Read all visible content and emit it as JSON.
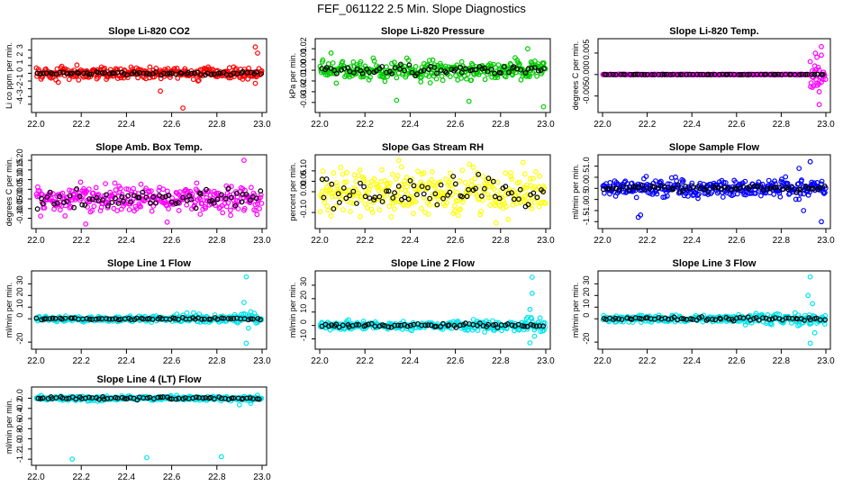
{
  "title": "FEF_061122  2.5 Min. Slope Diagnostics",
  "chart_data": [
    {
      "type": "scatter",
      "title": "Slope Li-820 CO2",
      "ylabel": "Li co ppm per min.",
      "xlim": [
        22.0,
        23.0
      ],
      "ylim": [
        -4.6,
        4.0
      ],
      "xticks": [
        "22.0",
        "22.2",
        "22.4",
        "22.6",
        "22.8",
        "23.0"
      ],
      "yticks": [
        -4,
        -3,
        -2,
        -1,
        0,
        1,
        2,
        3
      ],
      "series": [
        {
          "name": "raw",
          "color": "#ff0000",
          "spread": 0.55
        },
        {
          "name": "avg",
          "color": "#000000",
          "spread": 0.15
        }
      ],
      "outliers": [
        {
          "x": 22.97,
          "y": 3.4
        },
        {
          "x": 22.98,
          "y": 2.6
        },
        {
          "x": 22.65,
          "y": -4.5
        },
        {
          "x": 22.97,
          "y": -1.3
        },
        {
          "x": 22.55,
          "y": -2.3
        }
      ]
    },
    {
      "type": "scatter",
      "title": "Slope Li-820 Pressure",
      "ylabel": "kPa per min.",
      "xlim": [
        22.0,
        23.0
      ],
      "ylim": [
        -0.036,
        0.026
      ],
      "xticks": [
        "22.0",
        "22.2",
        "22.4",
        "22.6",
        "22.8",
        "23.0"
      ],
      "yticks": [
        "-0.03",
        "-0.02",
        "-0.01",
        "0.00",
        "0.01",
        "0.02"
      ],
      "series": [
        {
          "name": "raw",
          "color": "#00cc00",
          "spread": 0.006
        },
        {
          "name": "avg",
          "color": "#000000",
          "spread": 0.003
        }
      ],
      "outliers": [
        {
          "x": 22.34,
          "y": -0.028
        },
        {
          "x": 22.99,
          "y": -0.034
        },
        {
          "x": 22.92,
          "y": 0.02
        },
        {
          "x": 22.66,
          "y": -0.029
        },
        {
          "x": 22.05,
          "y": 0.016
        }
      ]
    },
    {
      "type": "scatter",
      "title": "Slope Li-820 Temp.",
      "ylabel": "degrees C per min.",
      "xlim": [
        22.0,
        23.0
      ],
      "ylim": [
        -0.008,
        0.0075
      ],
      "xticks": [
        "22.0",
        "22.2",
        "22.4",
        "22.6",
        "22.8",
        "23.0"
      ],
      "yticks": [
        "-0.005",
        "0.000",
        "0.005"
      ],
      "series": [
        {
          "name": "raw",
          "color": "#ff00ff",
          "spread": 6e-05
        },
        {
          "name": "avg",
          "color": "#000000",
          "spread": 3e-05
        }
      ],
      "outliers": [
        {
          "x": 22.98,
          "y": 0.0065
        },
        {
          "x": 22.97,
          "y": -0.007
        },
        {
          "x": 22.96,
          "y": 0.004
        },
        {
          "x": 22.97,
          "y": -0.004
        },
        {
          "x": 22.95,
          "y": 0.002
        },
        {
          "x": 22.96,
          "y": -0.002
        },
        {
          "x": 22.93,
          "y": 0.003
        },
        {
          "x": 22.98,
          "y": 0.0045
        },
        {
          "x": 22.94,
          "y": -0.003
        }
      ]
    },
    {
      "type": "scatter",
      "title": "Slope Amb. Box Temp.",
      "ylabel": "degrees C per min.",
      "xlim": [
        22.0,
        23.0
      ],
      "ylim": [
        -0.135,
        0.21
      ],
      "xticks": [
        "22.0",
        "22.2",
        "22.4",
        "22.6",
        "22.8",
        "23.0"
      ],
      "yticks": [
        "-0.10",
        "-0.05",
        "0.00",
        "0.05",
        "0.10",
        "0.15",
        "0.20"
      ],
      "series": [
        {
          "name": "raw",
          "color": "#ff00ff",
          "spread": 0.05
        },
        {
          "name": "avg",
          "color": "#000000",
          "spread": 0.03
        }
      ],
      "outliers": [
        {
          "x": 22.92,
          "y": 0.2
        },
        {
          "x": 22.22,
          "y": -0.13
        },
        {
          "x": 22.58,
          "y": -0.12
        }
      ]
    },
    {
      "type": "scatter",
      "title": "Slope Gas Stream RH",
      "ylabel": "percent per min.",
      "xlim": [
        22.0,
        23.0
      ],
      "ylim": [
        -0.16,
        0.16
      ],
      "xticks": [
        "22.0",
        "22.2",
        "22.4",
        "22.6",
        "22.8",
        "23.0"
      ],
      "yticks": [
        "-0.10",
        "0.00",
        "0.05",
        "0.10"
      ],
      "series": [
        {
          "name": "raw",
          "color": "#ffff00",
          "spread": 0.07
        },
        {
          "name": "avg",
          "color": "#000000",
          "spread": 0.045
        }
      ],
      "outliers": [
        {
          "x": 22.35,
          "y": 0.15
        },
        {
          "x": 22.78,
          "y": -0.15
        },
        {
          "x": 22.9,
          "y": 0.14
        }
      ]
    },
    {
      "type": "scatter",
      "title": "Slope Sample Flow",
      "ylabel": "ml/min per min.",
      "xlim": [
        22.0,
        23.0
      ],
      "ylim": [
        -1.65,
        1.35
      ],
      "xticks": [
        "22.0",
        "22.2",
        "22.4",
        "22.6",
        "22.8",
        "23.0"
      ],
      "yticks": [
        "-1.5",
        "-1.0",
        "-0.5",
        "0.0",
        "0.5",
        "1.0"
      ],
      "series": [
        {
          "name": "raw",
          "color": "#0000ff",
          "spread": 0.28
        },
        {
          "name": "avg",
          "color": "#000000",
          "spread": 0.1
        }
      ],
      "outliers": [
        {
          "x": 22.16,
          "y": -1.3
        },
        {
          "x": 22.17,
          "y": -1.2
        },
        {
          "x": 22.93,
          "y": 1.2
        },
        {
          "x": 22.98,
          "y": -1.5
        },
        {
          "x": 22.88,
          "y": 0.9
        },
        {
          "x": 22.9,
          "y": -1.0
        }
      ]
    },
    {
      "type": "scatter",
      "title": "Slope Line 1 Flow",
      "ylabel": "ml/min per min.",
      "xlim": [
        22.0,
        23.0
      ],
      "ylim": [
        -23,
        38
      ],
      "xticks": [
        "22.0",
        "22.2",
        "22.4",
        "22.6",
        "22.8",
        "23.0"
      ],
      "yticks": [
        -20,
        0,
        10,
        20,
        30
      ],
      "series": [
        {
          "name": "raw",
          "color": "#00e5ee",
          "spread": 1.5
        },
        {
          "name": "avg",
          "color": "#000000",
          "spread": 0.6
        }
      ],
      "outliers": [
        {
          "x": 22.93,
          "y": 36
        },
        {
          "x": 22.93,
          "y": -21
        },
        {
          "x": 22.92,
          "y": 14
        },
        {
          "x": 22.94,
          "y": -8
        },
        {
          "x": 22.95,
          "y": 6
        }
      ]
    },
    {
      "type": "scatter",
      "title": "Slope Line 2 Flow",
      "ylabel": "ml/min per min.",
      "xlim": [
        22.0,
        23.0
      ],
      "ylim": [
        -15,
        38
      ],
      "xticks": [
        "22.0",
        "22.2",
        "22.4",
        "22.6",
        "22.8",
        "23.0"
      ],
      "yticks": [
        -10,
        0,
        10,
        20,
        30
      ],
      "series": [
        {
          "name": "raw",
          "color": "#00e5ee",
          "spread": 2.0
        },
        {
          "name": "avg",
          "color": "#000000",
          "spread": 1.0
        }
      ],
      "outliers": [
        {
          "x": 22.94,
          "y": 36
        },
        {
          "x": 22.93,
          "y": -13
        },
        {
          "x": 22.94,
          "y": 24
        },
        {
          "x": 22.92,
          "y": 6
        },
        {
          "x": 22.95,
          "y": -8
        },
        {
          "x": 22.93,
          "y": 12
        }
      ]
    },
    {
      "type": "scatter",
      "title": "Slope Line 3 Flow",
      "ylabel": "ml/min per min.",
      "xlim": [
        22.0,
        23.0
      ],
      "ylim": [
        -23,
        38
      ],
      "xticks": [
        "22.0",
        "22.2",
        "22.4",
        "22.6",
        "22.8",
        "23.0"
      ],
      "yticks": [
        -20,
        0,
        10,
        20,
        30
      ],
      "series": [
        {
          "name": "raw",
          "color": "#00e5ee",
          "spread": 2.0
        },
        {
          "name": "avg",
          "color": "#000000",
          "spread": 1.0
        }
      ],
      "outliers": [
        {
          "x": 22.93,
          "y": 36
        },
        {
          "x": 22.93,
          "y": -21
        },
        {
          "x": 22.92,
          "y": 20
        },
        {
          "x": 22.94,
          "y": 13
        },
        {
          "x": 22.95,
          "y": -12
        }
      ]
    },
    {
      "type": "scatter",
      "title": "Slope Line 4 (LT) Flow",
      "ylabel": "ml/min per min.",
      "xlim": [
        22.0,
        23.0
      ],
      "ylim": [
        -1.25,
        0.15
      ],
      "xticks": [
        "22.0",
        "22.2",
        "22.4",
        "22.6",
        "22.8",
        "23.0"
      ],
      "yticks": [
        "-1.2",
        "-1.0",
        "-0.8",
        "-0.6",
        "-0.4",
        "-0.2",
        "0.0"
      ],
      "series": [
        {
          "name": "raw",
          "color": "#00e5ee",
          "spread": 0.03
        },
        {
          "name": "avg",
          "color": "#000000",
          "spread": 0.02
        }
      ],
      "outliers": [
        {
          "x": 22.16,
          "y": -1.2
        },
        {
          "x": 22.49,
          "y": -1.17
        },
        {
          "x": 22.82,
          "y": -1.15
        },
        {
          "x": 22.9,
          "y": -0.13
        },
        {
          "x": 22.95,
          "y": -0.1
        }
      ]
    }
  ]
}
